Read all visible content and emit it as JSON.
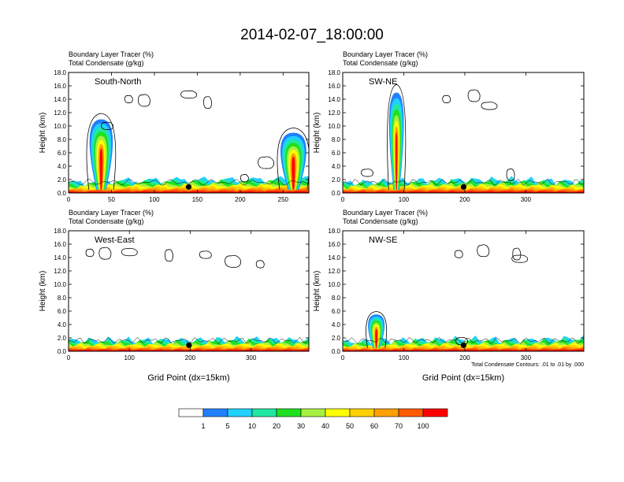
{
  "title": "2014-02-07_18:00:00",
  "panel_titles": {
    "line1": "Boundary Layer Tracer   (%)",
    "line2": "Total Condensate   (g/kg)"
  },
  "colors": [
    "#ffffff",
    "#2080ff",
    "#20d0ff",
    "#20e8a0",
    "#20e020",
    "#a8f040",
    "#ffff00",
    "#ffd000",
    "#ffa000",
    "#ff5a00",
    "#ff0000"
  ],
  "chart_data": [
    {
      "type": "heatmap",
      "name": "South-North",
      "label": "South-North",
      "ylabel": "Height (km)",
      "xlabel": "",
      "xlim": [
        0,
        280
      ],
      "ylim": [
        0,
        18
      ],
      "xticks": [
        0,
        50,
        100,
        150,
        200,
        250
      ],
      "yticks": [
        "0.0",
        "2.0",
        "4.0",
        "6.0",
        "8.0",
        "10.0",
        "12.0",
        "14.0",
        "16.0",
        "18.0"
      ],
      "marker_x": 140
    },
    {
      "type": "heatmap",
      "name": "SW-NE",
      "label": "SW-NE",
      "ylabel": "Height (km)",
      "xlabel": "",
      "xlim": [
        0,
        395
      ],
      "ylim": [
        0,
        18
      ],
      "xticks": [
        0,
        100,
        200,
        300
      ],
      "yticks": [
        "0.0",
        "2.0",
        "4.0",
        "6.0",
        "8.0",
        "10.0",
        "12.0",
        "14.0",
        "16.0",
        "18.0"
      ],
      "marker_x": 198
    },
    {
      "type": "heatmap",
      "name": "West-East",
      "label": "West-East",
      "ylabel": "Height (km)",
      "xlabel": "Grid Point (dx=15km)",
      "xlim": [
        0,
        395
      ],
      "ylim": [
        0,
        18
      ],
      "xticks": [
        0,
        100,
        200,
        300
      ],
      "yticks": [
        "0.0",
        "2.0",
        "4.0",
        "6.0",
        "8.0",
        "10.0",
        "12.0",
        "14.0",
        "16.0",
        "18.0"
      ],
      "marker_x": 198
    },
    {
      "type": "heatmap",
      "name": "NW-SE",
      "label": "NW-SE",
      "ylabel": "Height (km)",
      "xlabel": "Grid Point (dx=15km)",
      "xlim": [
        0,
        395
      ],
      "ylim": [
        0,
        18
      ],
      "xticks": [
        0,
        100,
        200,
        300
      ],
      "yticks": [
        "0.0",
        "2.0",
        "4.0",
        "6.0",
        "8.0",
        "10.0",
        "12.0",
        "14.0",
        "16.0",
        "18.0"
      ],
      "marker_x": 198,
      "footnote": "Total Condensate Contours: .01 to .01 by .000"
    }
  ],
  "colorbar": {
    "labels": [
      "1",
      "5",
      "10",
      "20",
      "30",
      "40",
      "50",
      "60",
      "70",
      "100"
    ]
  }
}
